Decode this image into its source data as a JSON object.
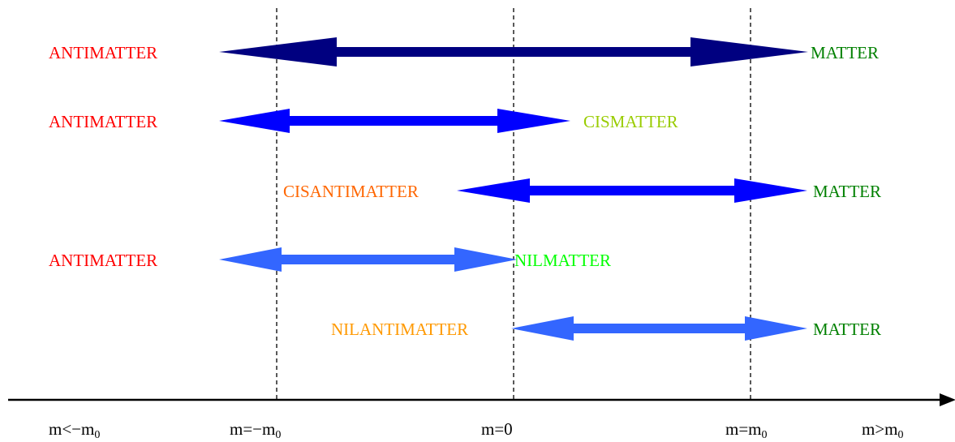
{
  "colors": {
    "antimatter": "#ff0000",
    "matter": "#008000",
    "cismatter": "#99cc00",
    "cisantimatter": "#ff6600",
    "nilmatter": "#00ff00",
    "nilantimatter": "#ff9900",
    "arrow_navy": "#000080",
    "arrow_blue": "#0000ff",
    "arrow_light_blue": "#3366ff",
    "axis": "#000000"
  },
  "rows": [
    {
      "left_label": "ANTIMATTER",
      "left_color": "antimatter",
      "right_label": "MATTER",
      "right_color": "matter",
      "arrow_color": "arrow_navy"
    },
    {
      "left_label": "ANTIMATTER",
      "left_color": "antimatter",
      "right_label": "CISMATTER",
      "right_color": "cismatter",
      "arrow_color": "arrow_blue"
    },
    {
      "left_label": "CISANTIMATTER",
      "left_color": "cisantimatter",
      "right_label": "MATTER",
      "right_color": "matter",
      "arrow_color": "arrow_blue"
    },
    {
      "left_label": "ANTIMATTER",
      "left_color": "antimatter",
      "right_label": "NILMATTER",
      "right_color": "nilmatter",
      "arrow_color": "arrow_light_blue"
    },
    {
      "left_label": "NILANTIMATTER",
      "left_color": "nilantimatter",
      "right_label": "MATTER",
      "right_color": "matter",
      "arrow_color": "arrow_light_blue"
    }
  ],
  "axis_labels": [
    {
      "main": "m<−m",
      "sub": "0"
    },
    {
      "main": "m=−m",
      "sub": "0"
    },
    {
      "main": "m=0",
      "sub": ""
    },
    {
      "main": "m=m",
      "sub": "0"
    },
    {
      "main": "m>m",
      "sub": "0"
    }
  ]
}
